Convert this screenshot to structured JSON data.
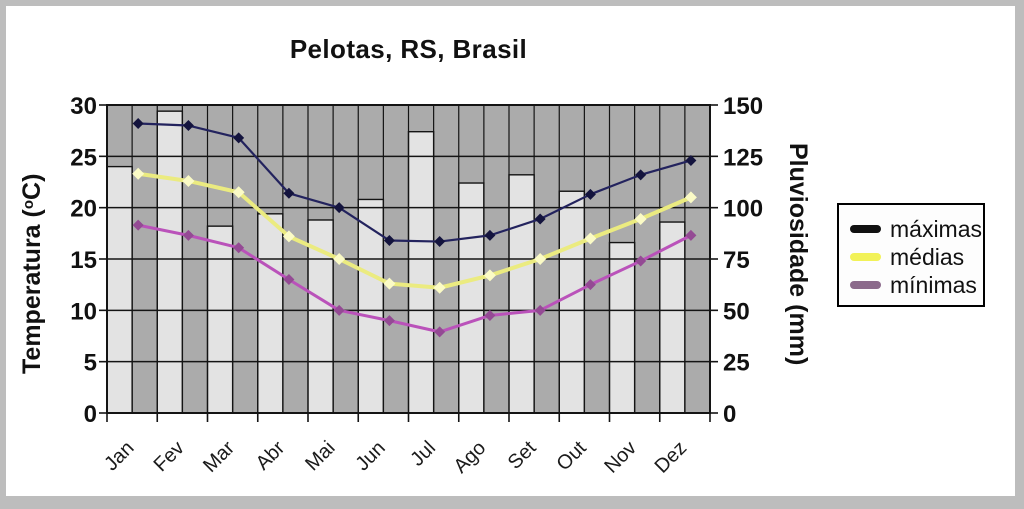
{
  "chart_data": {
    "type": "bar",
    "subtype": "combo-bar-line-climograph",
    "title": "Pelotas, RS, Brasil",
    "categories": [
      "Jan",
      "Fev",
      "Mar",
      "Abr",
      "Mai",
      "Jun",
      "Jul",
      "Ago",
      "Set",
      "Out",
      "Nov",
      "Dez"
    ],
    "bars": {
      "name": "pluviosidade",
      "unit": "mm",
      "axis": "right",
      "values": [
        120,
        147,
        91,
        97,
        94,
        104,
        137,
        112,
        116,
        108,
        83,
        93
      ]
    },
    "series": [
      {
        "name": "máximas",
        "unit": "°C",
        "values": [
          28.2,
          28.0,
          26.8,
          21.4,
          20.0,
          16.8,
          16.7,
          17.3,
          18.9,
          21.3,
          23.2,
          24.6
        ],
        "line_color": "#23235e",
        "marker_color": "#14143e",
        "legend_color": "#111111",
        "line_width": 2.2,
        "marker_size": 5.5
      },
      {
        "name": "médias",
        "unit": "°C",
        "values": [
          23.3,
          22.6,
          21.5,
          17.2,
          15.0,
          12.6,
          12.2,
          13.4,
          15.0,
          17.0,
          18.9,
          21.0
        ],
        "line_color": "#ebeb80",
        "marker_color": "#fbfbc6",
        "legend_color": "#f2f258",
        "line_width": 4.0,
        "marker_size": 6.0
      },
      {
        "name": "mínimas",
        "unit": "°C",
        "values": [
          18.3,
          17.3,
          16.1,
          13.0,
          10.0,
          9.0,
          7.9,
          9.5,
          10.0,
          12.5,
          14.8,
          17.3
        ],
        "line_color": "#ba52ba",
        "marker_color": "#944a94",
        "legend_color": "#8b6a8b",
        "line_width": 3.0,
        "marker_size": 5.5
      }
    ],
    "left_axis": {
      "label_pre": "Temperatura (",
      "label_sup": "o",
      "label_post": "C)",
      "ticks": [
        30,
        25,
        20,
        15,
        10,
        5,
        0
      ],
      "range": [
        0,
        30
      ]
    },
    "right_axis": {
      "label": "Pluviosidade (mm)",
      "ticks": [
        150,
        125,
        100,
        75,
        50,
        25,
        0
      ],
      "range": [
        0,
        150
      ]
    },
    "legend_position": "right",
    "grid": true,
    "colors": {
      "plot_bg": "#ababab",
      "bar_fill": "#e3e3e3",
      "bar_border": "#141414",
      "grid_line": "#141414",
      "frame_border": "#bdbdbd",
      "text": "#111111"
    }
  }
}
